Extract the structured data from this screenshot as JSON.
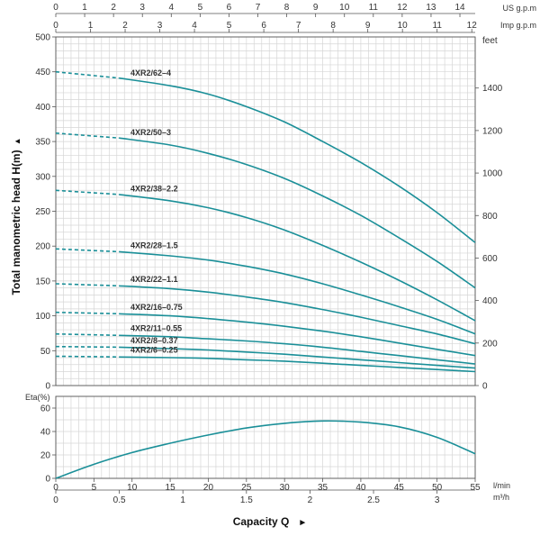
{
  "chart_data": [
    {
      "type": "line",
      "ylabel": "Total manometric head H(m)",
      "ylabel_arrow": "▲",
      "right_axis_unit": "feet",
      "top_axis_us": {
        "unit": "US g.p.m",
        "ticks": [
          "0",
          "1",
          "2",
          "3",
          "4",
          "5",
          "6",
          "7",
          "8",
          "9",
          "10",
          "11",
          "12",
          "13",
          "14"
        ]
      },
      "top_axis_imp": {
        "unit": "Imp g.p.m",
        "ticks": [
          "0",
          "1",
          "2",
          "3",
          "4",
          "5",
          "6",
          "7",
          "8",
          "9",
          "10",
          "11",
          "12"
        ]
      },
      "y_ticks": [
        "0",
        "50",
        "100",
        "150",
        "200",
        "250",
        "300",
        "350",
        "400",
        "450",
        "500"
      ],
      "y_ticks_feet": [
        "0",
        "200",
        "400",
        "600",
        "800",
        "1000",
        "1200",
        "1400"
      ],
      "ylim": [
        0,
        500
      ],
      "xlim": [
        0,
        55
      ],
      "grid": true,
      "dashed_until_x": 8.3,
      "curve_color": "#1a8f98",
      "series": [
        {
          "name": "4XR2/62–4",
          "x": [
            0,
            8.3,
            15,
            20,
            25,
            30,
            35,
            40,
            45,
            50,
            55
          ],
          "y": [
            450,
            441,
            430,
            418,
            400,
            378,
            350,
            320,
            286,
            248,
            205
          ]
        },
        {
          "name": "4XR2/50–3",
          "x": [
            0,
            8.3,
            15,
            20,
            25,
            30,
            35,
            40,
            45,
            50,
            55
          ],
          "y": [
            362,
            355,
            345,
            333,
            317,
            297,
            272,
            244,
            212,
            178,
            140
          ]
        },
        {
          "name": "4XR2/38–2.2",
          "x": [
            0,
            8.3,
            15,
            20,
            25,
            30,
            35,
            40,
            45,
            50,
            55
          ],
          "y": [
            280,
            274,
            265,
            255,
            241,
            223,
            201,
            177,
            151,
            123,
            93
          ]
        },
        {
          "name": "4XR2/28–1.5",
          "x": [
            0,
            8.3,
            15,
            20,
            25,
            30,
            35,
            40,
            45,
            50,
            55
          ],
          "y": [
            196,
            192,
            186,
            180,
            171,
            160,
            146,
            130,
            113,
            95,
            74
          ]
        },
        {
          "name": "4XR2/22–1.1",
          "x": [
            0,
            8.3,
            15,
            20,
            25,
            30,
            35,
            40,
            45,
            50,
            55
          ],
          "y": [
            146,
            143,
            139,
            134,
            127,
            119,
            109,
            98,
            86,
            74,
            60
          ]
        },
        {
          "name": "4XR2/16–0.75",
          "x": [
            0,
            8.3,
            15,
            20,
            25,
            30,
            35,
            40,
            45,
            50,
            55
          ],
          "y": [
            105,
            103,
            100,
            96,
            91,
            85,
            78,
            70,
            61,
            52,
            43
          ]
        },
        {
          "name": "4XR2/11–0.55",
          "x": [
            0,
            8.3,
            15,
            20,
            25,
            30,
            35,
            40,
            45,
            50,
            55
          ],
          "y": [
            74,
            72,
            70,
            67,
            64,
            60,
            55,
            49,
            43,
            37,
            31
          ]
        },
        {
          "name": "4XR2/8–0.37",
          "x": [
            0,
            8.3,
            15,
            20,
            25,
            30,
            35,
            40,
            45,
            50,
            55
          ],
          "y": [
            56,
            55,
            53,
            51,
            48,
            45,
            41,
            37,
            33,
            29,
            25
          ]
        },
        {
          "name": "4XR2/6–0.25",
          "x": [
            0,
            8.3,
            15,
            20,
            25,
            30,
            35,
            40,
            45,
            50,
            55
          ],
          "y": [
            42,
            41,
            40,
            39,
            37,
            35,
            32,
            29,
            26,
            23,
            20
          ]
        }
      ]
    },
    {
      "type": "line",
      "ylabel": "Eta(%)",
      "xlabel": "Capacity Q",
      "xlabel_arrow": "►",
      "x_unit_lmin": "l/min",
      "x_unit_m3h": "m³/h",
      "y_ticks": [
        "0",
        "20",
        "40",
        "60"
      ],
      "ylim": [
        0,
        70
      ],
      "xlim": [
        0,
        55
      ],
      "x_ticks_lmin": [
        "0",
        "5",
        "10",
        "15",
        "20",
        "25",
        "30",
        "35",
        "40",
        "45",
        "50",
        "55"
      ],
      "x_ticks_m3h": [
        "0",
        "0.5",
        "1",
        "1.5",
        "2",
        "2.5",
        "3"
      ],
      "grid": true,
      "curve_color": "#1a8f98",
      "series": [
        {
          "name": "Eta",
          "x": [
            0,
            5,
            10,
            15,
            20,
            25,
            30,
            35,
            40,
            45,
            50,
            55
          ],
          "y": [
            0,
            12,
            22,
            30,
            37,
            43,
            47,
            49,
            48,
            44,
            35,
            21
          ]
        }
      ]
    }
  ]
}
